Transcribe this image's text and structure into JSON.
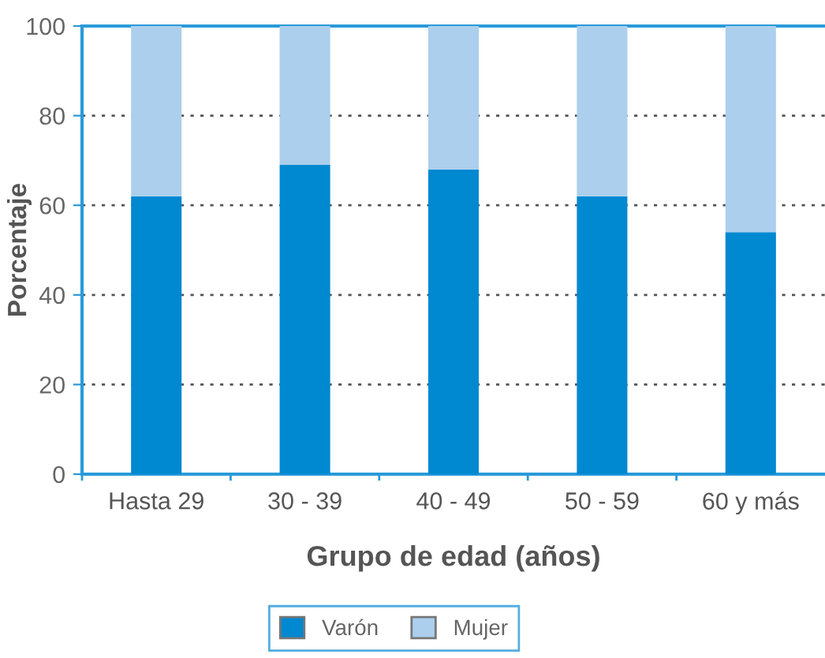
{
  "chart_data": {
    "type": "bar",
    "stacked": true,
    "xlabel": "Grupo de edad (años)",
    "ylabel": "Porcentaje",
    "categories": [
      "Hasta 29",
      "30 - 39",
      "40 - 49",
      "50 - 59",
      "60 y más"
    ],
    "series": [
      {
        "name": "Varón",
        "color": "#0088d1",
        "values": [
          62,
          69,
          68,
          62,
          54
        ]
      },
      {
        "name": "Mujer",
        "color": "#abcfed",
        "values": [
          38,
          31,
          32,
          38,
          46
        ]
      }
    ],
    "ylim": [
      0,
      100
    ],
    "yticks": [
      0,
      20,
      40,
      60,
      80,
      100
    ],
    "grid": "y",
    "legend": "bottom"
  }
}
